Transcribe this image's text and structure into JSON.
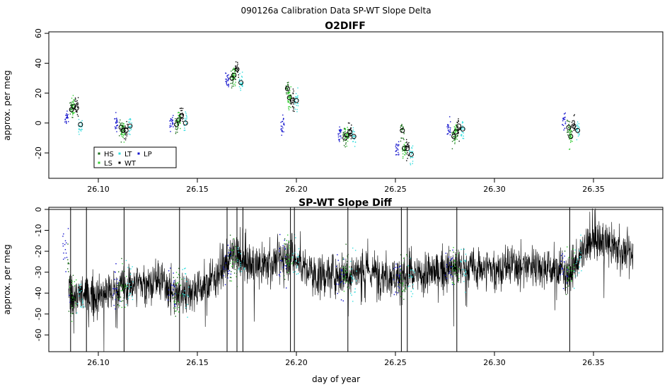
{
  "figure": {
    "title": "090126a   Calibration Data SP-WT Slope Delta",
    "xlabel": "day of year"
  },
  "colors": {
    "HS": "#1a6b1a",
    "LS": "#33cc33",
    "LT": "#33dddd",
    "WT": "#000000",
    "LP": "#1010cc",
    "line": "#000000"
  },
  "chart_data": [
    {
      "type": "scatter",
      "title": "O2DIFF",
      "ylabel": "approx. per meg",
      "xlim": [
        26.075,
        26.385
      ],
      "ylim": [
        -37,
        61
      ],
      "x_ticks": [
        "26.10",
        "26.15",
        "26.20",
        "26.25",
        "26.30",
        "26.35"
      ],
      "y_ticks": [
        "60",
        "40",
        "20",
        "0",
        "-20"
      ],
      "legend": {
        "placement": "bottom-left",
        "entries": [
          "HS",
          "LT",
          "LP",
          "LS",
          "WT"
        ]
      },
      "calibrations": [
        {
          "day": 26.088,
          "means": {
            "LP": 3,
            "HS": 9,
            "LS": 11,
            "WT": 10,
            "LT": -1
          }
        },
        {
          "day": 26.113,
          "means": {
            "LP": 0,
            "HS": -3,
            "LS": -5,
            "WT": -5,
            "LT": -2
          }
        },
        {
          "day": 26.141,
          "means": {
            "LP": 0,
            "HS": -1,
            "LS": 2,
            "WT": 5,
            "LT": 0
          }
        },
        {
          "day": 26.169,
          "means": {
            "LP": 28,
            "HS": 30,
            "LS": 32,
            "WT": 36,
            "LT": 27
          }
        },
        {
          "day": 26.197,
          "means": {
            "LP": -2,
            "HS": 23,
            "LS": 17,
            "WT": 15,
            "LT": 15
          }
        },
        {
          "day": 26.226,
          "means": {
            "LP": -6,
            "HS": -10,
            "LS": -8,
            "WT": -6,
            "LT": -9
          }
        },
        {
          "day": 26.255,
          "means": {
            "LP": -18,
            "HS": -5,
            "LS": -17,
            "WT": -17,
            "LT": -21
          }
        },
        {
          "day": 26.281,
          "means": {
            "LP": -3,
            "HS": -9,
            "LS": -6,
            "WT": -2,
            "LT": -4
          }
        },
        {
          "day": 26.339,
          "means": {
            "LP": 2,
            "HS": -3,
            "LS": -9,
            "WT": -2,
            "LT": -5
          }
        }
      ]
    },
    {
      "type": "line",
      "title": "SP-WT Slope Diff",
      "ylabel": "approx. per meg",
      "xlabel": "day of year",
      "xlim": [
        26.075,
        26.385
      ],
      "ylim": [
        -68,
        1
      ],
      "x_ticks": [
        "26.10",
        "26.15",
        "26.20",
        "26.25",
        "26.30",
        "26.35"
      ],
      "y_ticks": [
        "0",
        "-10",
        "-20",
        "-30",
        "-40",
        "-50",
        "-60"
      ],
      "x_range": [
        26.085,
        26.37
      ],
      "trend": [
        {
          "x": 26.085,
          "y": -40
        },
        {
          "x": 26.1,
          "y": -42
        },
        {
          "x": 26.115,
          "y": -36
        },
        {
          "x": 26.13,
          "y": -34
        },
        {
          "x": 26.14,
          "y": -40
        },
        {
          "x": 26.155,
          "y": -36
        },
        {
          "x": 26.168,
          "y": -22
        },
        {
          "x": 26.18,
          "y": -28
        },
        {
          "x": 26.197,
          "y": -22
        },
        {
          "x": 26.21,
          "y": -32
        },
        {
          "x": 26.226,
          "y": -30
        },
        {
          "x": 26.24,
          "y": -30
        },
        {
          "x": 26.255,
          "y": -33
        },
        {
          "x": 26.27,
          "y": -30
        },
        {
          "x": 26.28,
          "y": -28
        },
        {
          "x": 26.3,
          "y": -28
        },
        {
          "x": 26.32,
          "y": -26
        },
        {
          "x": 26.338,
          "y": -30
        },
        {
          "x": 26.35,
          "y": -14
        },
        {
          "x": 26.37,
          "y": -22
        }
      ],
      "spikes": [
        26.086,
        26.094,
        26.113,
        26.141,
        26.165,
        26.17,
        26.173,
        26.197,
        26.199,
        26.226,
        26.253,
        26.256,
        26.281,
        26.338
      ]
    }
  ]
}
